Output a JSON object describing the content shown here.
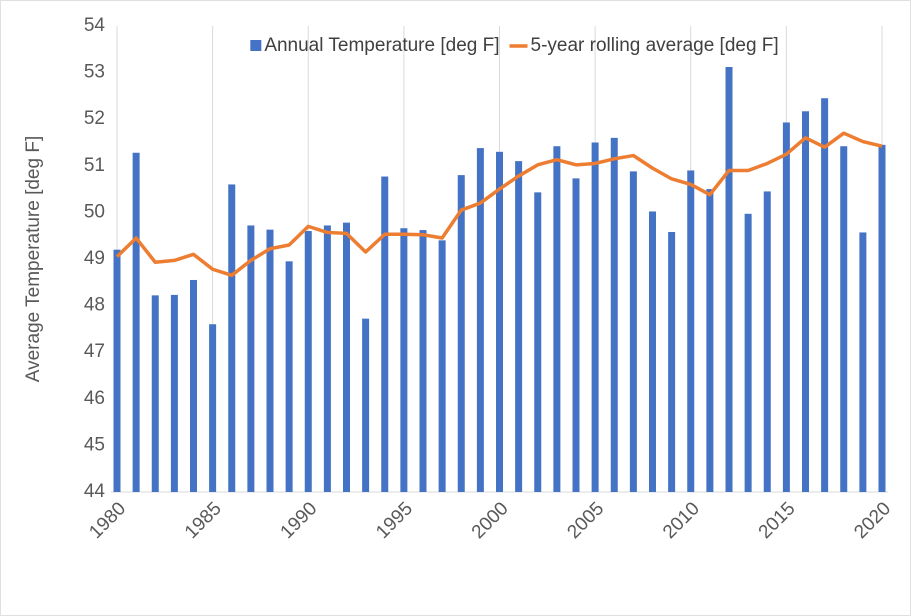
{
  "chart_data": {
    "type": "bar",
    "y_label": "Average Temperature [deg F]",
    "x": [
      1980,
      1981,
      1982,
      1983,
      1984,
      1985,
      1986,
      1987,
      1988,
      1989,
      1990,
      1991,
      1992,
      1993,
      1994,
      1995,
      1996,
      1997,
      1998,
      1999,
      2000,
      2001,
      2002,
      2003,
      2004,
      2005,
      2006,
      2007,
      2008,
      2009,
      2010,
      2011,
      2012,
      2013,
      2014,
      2015,
      2016,
      2017,
      2018,
      2019,
      2020
    ],
    "series": [
      {
        "name": "Annual Temperature [deg F]",
        "type": "bar",
        "color": "#4472c4",
        "values": [
          49.2,
          51.28,
          48.22,
          48.23,
          48.55,
          47.6,
          50.6,
          49.72,
          49.63,
          48.95,
          49.6,
          49.72,
          49.78,
          47.72,
          50.77,
          49.66,
          49.62,
          49.4,
          50.8,
          51.38,
          51.3,
          51.1,
          50.43,
          51.42,
          50.73,
          51.5,
          51.6,
          50.88,
          50.02,
          49.58,
          50.9,
          50.5,
          53.12,
          49.97,
          50.45,
          51.93,
          52.17,
          52.45,
          51.42,
          49.57,
          51.45
        ]
      },
      {
        "name": "5-year rolling average [deg F]",
        "type": "line",
        "color": "#ed7d31",
        "values": [
          49.05,
          49.45,
          48.93,
          48.97,
          49.1,
          48.78,
          48.65,
          48.97,
          49.22,
          49.3,
          49.7,
          49.57,
          49.55,
          49.15,
          49.53,
          49.53,
          49.52,
          49.45,
          50.05,
          50.2,
          50.5,
          50.78,
          51.02,
          51.13,
          51.02,
          51.05,
          51.15,
          51.22,
          50.95,
          50.72,
          50.6,
          50.38,
          50.9,
          50.9,
          51.05,
          51.25,
          51.6,
          51.4,
          51.7,
          51.52,
          51.42
        ]
      }
    ],
    "xlim": [
      1980,
      2020
    ],
    "xticks": [
      1980,
      1985,
      1990,
      1995,
      2000,
      2005,
      2010,
      2015,
      2020
    ],
    "ylim": [
      44,
      54
    ],
    "yticks": [
      44,
      45,
      46,
      47,
      48,
      49,
      50,
      51,
      52,
      53,
      54
    ],
    "grid": "x",
    "legend": "top"
  }
}
